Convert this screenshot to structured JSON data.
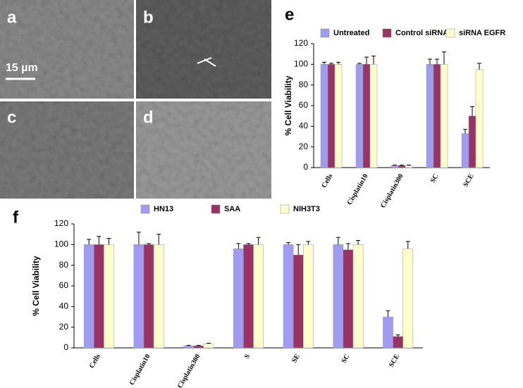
{
  "image_panels": {
    "labels": [
      "a",
      "b",
      "c",
      "d"
    ],
    "scale_bar": "15 µm"
  },
  "chart_data": [
    {
      "type": "bar",
      "panel_label": "e",
      "ylabel": "% Cell Viability",
      "categories": [
        "Cells",
        "Cisplatin10",
        "Cisplatin300",
        "SC",
        "SCE"
      ],
      "series": [
        {
          "name": "Untreated",
          "color": "#9f9cf2",
          "values": [
            100,
            100,
            2,
            100,
            33
          ],
          "errors": [
            2,
            1,
            0.5,
            5,
            4
          ]
        },
        {
          "name": "Control siRNA",
          "color": "#993366",
          "values": [
            100,
            100,
            2,
            100,
            50
          ],
          "errors": [
            1,
            7,
            0.5,
            5,
            9
          ]
        },
        {
          "name": "siRNA EGFR",
          "color": "#ffffcc",
          "values": [
            100,
            100,
            2,
            100,
            95
          ],
          "errors": [
            2,
            8,
            0.5,
            12,
            6
          ]
        }
      ],
      "ylim": [
        0,
        120
      ],
      "yticks": [
        0,
        20,
        40,
        60,
        80,
        100,
        120
      ],
      "grid": false,
      "legend": "top"
    },
    {
      "type": "bar",
      "panel_label": "f",
      "ylabel": "% Cell Viability",
      "categories": [
        "Cells",
        "Cisplatin10",
        "Cisplatin300",
        "S",
        "SE",
        "SC",
        "SCE"
      ],
      "series": [
        {
          "name": "HN13",
          "color": "#9f9cf2",
          "values": [
            100,
            100,
            2,
            96,
            100,
            100,
            30
          ],
          "errors": [
            5,
            12,
            0.5,
            5,
            2,
            7,
            6
          ]
        },
        {
          "name": "SAA",
          "color": "#993366",
          "values": [
            100,
            100,
            2,
            100,
            90,
            95,
            11
          ],
          "errors": [
            8,
            1,
            0.5,
            1,
            10,
            6,
            1.5
          ]
        },
        {
          "name": "NIH3T3",
          "color": "#ffffcc",
          "values": [
            100,
            100,
            4,
            100,
            100,
            100,
            96
          ],
          "errors": [
            6,
            10,
            0.5,
            7,
            3,
            4,
            7
          ]
        }
      ],
      "ylim": [
        0,
        120
      ],
      "yticks": [
        0,
        20,
        40,
        60,
        80,
        100,
        120
      ],
      "grid": false,
      "legend": "top"
    }
  ]
}
